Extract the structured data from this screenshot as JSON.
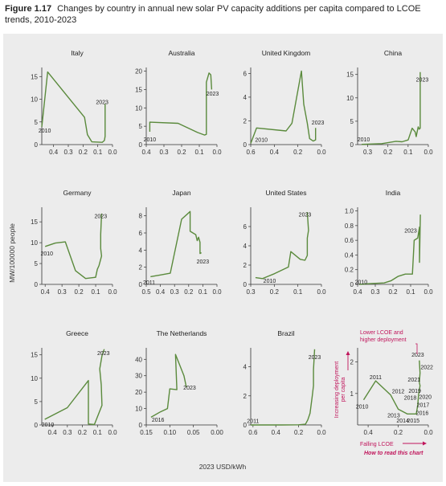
{
  "figure": {
    "label": "Figure 1.17",
    "title": "Changes by country in annual new solar PV capacity additions per capita compared to LCOE trends, 2010-2023"
  },
  "colors": {
    "line": "#5a8a3c",
    "axis": "#333333",
    "background": "#ececec",
    "annotation": "#c0155b"
  },
  "chart_data": {
    "type": "line",
    "xlabel": "2023 USD/kWh",
    "ylabel": "MW/100000 people",
    "x_axis_reversed": true,
    "panels": [
      {
        "name": "Italy",
        "xlim": [
          0.48,
          0.0
        ],
        "xticks": [
          0.4,
          0.3,
          0.2,
          0.1,
          0.0
        ],
        "xtick_labels": [
          "0.4",
          "0.3",
          "0.2",
          "0.1",
          "0.0"
        ],
        "ylim": [
          0,
          17
        ],
        "yticks": [
          0,
          5,
          10,
          15
        ],
        "ytick_labels": [
          "0",
          "5",
          "10",
          "15"
        ],
        "labels": [
          {
            "text": "2010",
            "x": 0.46,
            "y": 3.2
          },
          {
            "text": "2023",
            "x": 0.07,
            "y": 9.5
          }
        ],
        "points": [
          [
            0.48,
            3.9
          ],
          [
            0.44,
            16
          ],
          [
            0.19,
            6
          ],
          [
            0.17,
            2.2
          ],
          [
            0.14,
            0.6
          ],
          [
            0.07,
            0.5
          ],
          [
            0.055,
            0.9
          ],
          [
            0.05,
            1.8
          ],
          [
            0.05,
            5
          ],
          [
            0.05,
            9
          ]
        ]
      },
      {
        "name": "Australia",
        "xlim": [
          0.4,
          0.0
        ],
        "xticks": [
          0.4,
          0.3,
          0.2,
          0.1,
          0.0
        ],
        "xtick_labels": [
          "0.4",
          "0.3",
          "0.2",
          "0.1",
          "0.0"
        ],
        "ylim": [
          0,
          21
        ],
        "yticks": [
          0,
          5,
          10,
          15,
          20
        ],
        "ytick_labels": [
          "0",
          "5",
          "10",
          "15",
          "20"
        ],
        "labels": [
          {
            "text": "2010",
            "x": 0.38,
            "y": 1.5
          },
          {
            "text": "2023",
            "x": 0.025,
            "y": 14
          }
        ],
        "points": [
          [
            0.38,
            3.5
          ],
          [
            0.38,
            6.1
          ],
          [
            0.22,
            5.8
          ],
          [
            0.11,
            3.3
          ],
          [
            0.07,
            2.6
          ],
          [
            0.06,
            2.8
          ],
          [
            0.06,
            5
          ],
          [
            0.06,
            17
          ],
          [
            0.045,
            19.5
          ],
          [
            0.035,
            19
          ],
          [
            0.03,
            15
          ]
        ]
      },
      {
        "name": "United Kingdom",
        "xlim": [
          0.6,
          0.0
        ],
        "xticks": [
          0.6,
          0.4,
          0.2,
          0.0
        ],
        "xtick_labels": [
          "0.6",
          "0.4",
          "0.2",
          "0.0"
        ],
        "ylim": [
          0,
          6.5
        ],
        "yticks": [
          0,
          2,
          4,
          6
        ],
        "ytick_labels": [
          "0",
          "2",
          "4",
          "6"
        ],
        "labels": [
          {
            "text": "2010",
            "x": 0.51,
            "y": 0.45
          },
          {
            "text": "2023",
            "x": 0.03,
            "y": 1.9
          }
        ],
        "points": [
          [
            0.6,
            0.1
          ],
          [
            0.55,
            1.4
          ],
          [
            0.3,
            1.15
          ],
          [
            0.25,
            1.8
          ],
          [
            0.17,
            6.2
          ],
          [
            0.15,
            3.4
          ],
          [
            0.12,
            1.8
          ],
          [
            0.1,
            0.5
          ],
          [
            0.07,
            0.3
          ],
          [
            0.05,
            0.4
          ],
          [
            0.05,
            1.4
          ]
        ]
      },
      {
        "name": "China",
        "xlim": [
          0.35,
          0.0
        ],
        "xticks": [
          0.3,
          0.2,
          0.1,
          0.0
        ],
        "xtick_labels": [
          "0.3",
          "0.2",
          "0.1",
          "0.0"
        ],
        "ylim": [
          0,
          16.5
        ],
        "yticks": [
          0,
          5,
          10,
          15
        ],
        "ytick_labels": [
          "0",
          "5",
          "10",
          "15"
        ],
        "labels": [
          {
            "text": "2010",
            "x": 0.32,
            "y": 1.2
          },
          {
            "text": "2023",
            "x": 0.03,
            "y": 14
          }
        ],
        "points": [
          [
            0.33,
            0.05
          ],
          [
            0.23,
            0.2
          ],
          [
            0.16,
            0.7
          ],
          [
            0.13,
            0.6
          ],
          [
            0.1,
            1.0
          ],
          [
            0.08,
            3.5
          ],
          [
            0.065,
            2.7
          ],
          [
            0.06,
            1.7
          ],
          [
            0.05,
            3.8
          ],
          [
            0.045,
            3.3
          ],
          [
            0.04,
            3.5
          ],
          [
            0.04,
            7
          ],
          [
            0.04,
            15.5
          ]
        ]
      },
      {
        "name": "Germany",
        "xlim": [
          0.42,
          0.0
        ],
        "xticks": [
          0.4,
          0.3,
          0.2,
          0.1,
          0.0
        ],
        "xtick_labels": [
          "0.4",
          "0.3",
          "0.2",
          "0.1",
          "0.0"
        ],
        "ylim": [
          0,
          18.5
        ],
        "yticks": [
          0,
          5,
          10,
          15
        ],
        "ytick_labels": [
          "0",
          "5",
          "10",
          "15"
        ],
        "labels": [
          {
            "text": "2010",
            "x": 0.39,
            "y": 7.5
          },
          {
            "text": "2023",
            "x": 0.07,
            "y": 16.5
          }
        ],
        "points": [
          [
            0.4,
            9.1
          ],
          [
            0.34,
            9.9
          ],
          [
            0.28,
            10.2
          ],
          [
            0.22,
            3.3
          ],
          [
            0.16,
            1.4
          ],
          [
            0.1,
            1.7
          ],
          [
            0.09,
            3.6
          ],
          [
            0.08,
            4.5
          ],
          [
            0.065,
            6.8
          ],
          [
            0.07,
            8.6
          ],
          [
            0.07,
            12
          ],
          [
            0.065,
            17
          ]
        ]
      },
      {
        "name": "Japan",
        "xlim": [
          0.5,
          0.0
        ],
        "xticks": [
          0.5,
          0.4,
          0.3,
          0.2,
          0.1,
          0.0
        ],
        "xtick_labels": [
          "0.5",
          "0.4",
          "0.3",
          "0.2",
          "0.1",
          "0.0"
        ],
        "ylim": [
          0,
          9
        ],
        "yticks": [
          0,
          2,
          4,
          6,
          8
        ],
        "ytick_labels": [
          "0",
          "2",
          "4",
          "6",
          "8"
        ],
        "labels": [
          {
            "text": "2011",
            "x": 0.48,
            "y": 0.3
          },
          {
            "text": "2023",
            "x": 0.1,
            "y": 2.7
          }
        ],
        "points": [
          [
            0.47,
            0.9
          ],
          [
            0.4,
            1.1
          ],
          [
            0.33,
            1.3
          ],
          [
            0.25,
            7.6
          ],
          [
            0.19,
            8.5
          ],
          [
            0.19,
            6.2
          ],
          [
            0.15,
            5.8
          ],
          [
            0.14,
            5.1
          ],
          [
            0.13,
            5.5
          ],
          [
            0.12,
            4.9
          ],
          [
            0.12,
            3.6
          ],
          [
            0.11,
            3.7
          ]
        ]
      },
      {
        "name": "United States",
        "xlim": [
          0.3,
          0.0
        ],
        "xticks": [
          0.3,
          0.2,
          0.1,
          0.0
        ],
        "xtick_labels": [
          "0.3",
          "0.2",
          "0.1",
          "0.0"
        ],
        "ylim": [
          0,
          8
        ],
        "yticks": [
          0,
          2,
          4,
          6
        ],
        "ytick_labels": [
          "0",
          "2",
          "4",
          "6"
        ],
        "labels": [
          {
            "text": "2010",
            "x": 0.22,
            "y": 0.4
          },
          {
            "text": "2023",
            "x": 0.07,
            "y": 7.3
          }
        ],
        "points": [
          [
            0.28,
            0.7
          ],
          [
            0.25,
            0.6
          ],
          [
            0.23,
            0.8
          ],
          [
            0.2,
            1.1
          ],
          [
            0.14,
            1.8
          ],
          [
            0.13,
            3.4
          ],
          [
            0.09,
            2.6
          ],
          [
            0.07,
            2.5
          ],
          [
            0.06,
            3
          ],
          [
            0.06,
            4.8
          ],
          [
            0.055,
            5.6
          ],
          [
            0.06,
            7.5
          ]
        ]
      },
      {
        "name": "India",
        "xlim": [
          0.4,
          0.0
        ],
        "xticks": [
          0.4,
          0.3,
          0.2,
          0.1,
          0.0
        ],
        "xtick_labels": [
          "0.4",
          "0.3",
          "0.2",
          "0.1",
          "0.0"
        ],
        "ylim": [
          0,
          1.05
        ],
        "yticks": [
          0,
          0.2,
          0.4,
          0.6,
          0.8,
          1.0
        ],
        "ytick_labels": [
          "0",
          "0.2",
          "0.4",
          "0.6",
          "0.8",
          "1.0"
        ],
        "labels": [
          {
            "text": "2010",
            "x": 0.38,
            "y": 0.04
          },
          {
            "text": "2023",
            "x": 0.1,
            "y": 0.74
          }
        ],
        "points": [
          [
            0.39,
            0.0
          ],
          [
            0.33,
            0.01
          ],
          [
            0.25,
            0.02
          ],
          [
            0.21,
            0.05
          ],
          [
            0.17,
            0.11
          ],
          [
            0.13,
            0.14
          ],
          [
            0.09,
            0.14
          ],
          [
            0.08,
            0.6
          ],
          [
            0.06,
            0.63
          ],
          [
            0.05,
            0.78
          ],
          [
            0.05,
            0.3
          ],
          [
            0.045,
            0.95
          ]
        ]
      },
      {
        "name": "Greece",
        "xlim": [
          0.47,
          0.0
        ],
        "xticks": [
          0.4,
          0.3,
          0.2,
          0.1,
          0.0
        ],
        "xtick_labels": [
          "0.4",
          "0.3",
          "0.2",
          "0.1",
          "0.0"
        ],
        "ylim": [
          0,
          16.5
        ],
        "yticks": [
          0,
          5,
          10,
          15
        ],
        "ytick_labels": [
          "0",
          "5",
          "10",
          "15"
        ],
        "labels": [
          {
            "text": "2010",
            "x": 0.43,
            "y": 0.2
          },
          {
            "text": "2023",
            "x": 0.06,
            "y": 15.5
          }
        ],
        "points": [
          [
            0.45,
            1.2
          ],
          [
            0.3,
            3.7
          ],
          [
            0.16,
            9.5
          ],
          [
            0.16,
            0.2
          ],
          [
            0.12,
            0.1
          ],
          [
            0.07,
            4.2
          ],
          [
            0.075,
            8.6
          ],
          [
            0.085,
            12
          ],
          [
            0.07,
            14.8
          ],
          [
            0.055,
            16.2
          ]
        ]
      },
      {
        "name": "The Netherlands",
        "xlim": [
          0.15,
          0.0
        ],
        "xticks": [
          0.15,
          0.1,
          0.05,
          0.0
        ],
        "xtick_labels": [
          "0.15",
          "0.10",
          "0.05",
          "0.00"
        ],
        "ylim": [
          0,
          47
        ],
        "yticks": [
          0,
          10,
          20,
          30,
          40
        ],
        "ytick_labels": [
          "0",
          "10",
          "20",
          "30",
          "40"
        ],
        "labels": [
          {
            "text": "2016",
            "x": 0.125,
            "y": 3.5
          },
          {
            "text": "2023",
            "x": 0.058,
            "y": 23
          }
        ],
        "points": [
          [
            0.14,
            4.7
          ],
          [
            0.12,
            8
          ],
          [
            0.105,
            10
          ],
          [
            0.1,
            22
          ],
          [
            0.085,
            21.5
          ],
          [
            0.088,
            43
          ],
          [
            0.07,
            30
          ],
          [
            0.065,
            23
          ]
        ]
      },
      {
        "name": "Brazil",
        "xlim": [
          0.62,
          0.0
        ],
        "xticks": [
          0.6,
          0.4,
          0.2,
          0.0
        ],
        "xtick_labels": [
          "0.6",
          "0.4",
          "0.2",
          "0.0"
        ],
        "ylim": [
          0,
          5.3
        ],
        "yticks": [
          0,
          2,
          4
        ],
        "ytick_labels": [
          "0",
          "2",
          "4"
        ],
        "labels": [
          {
            "text": "2011",
            "x": 0.6,
            "y": 0.3
          },
          {
            "text": "2023",
            "x": 0.06,
            "y": 4.7
          }
        ],
        "points": [
          [
            0.62,
            0.0
          ],
          [
            0.5,
            0.0
          ],
          [
            0.35,
            0.0
          ],
          [
            0.2,
            0.01
          ],
          [
            0.14,
            0.05
          ],
          [
            0.12,
            0.35
          ],
          [
            0.1,
            0.8
          ],
          [
            0.08,
            2.0
          ],
          [
            0.07,
            2.7
          ],
          [
            0.07,
            3.8
          ],
          [
            0.06,
            5.2
          ]
        ]
      },
      {
        "name": "",
        "is_explainer": true,
        "xlim": [
          0.47,
          0.0
        ],
        "xticks": [
          0.4,
          0.2,
          0.0
        ],
        "xtick_labels": [
          "0.4",
          "0.2",
          "0.0"
        ],
        "ylim": [
          0,
          2.45
        ],
        "yticks": [
          1,
          2
        ],
        "ytick_labels": [
          "1",
          "2"
        ],
        "labels": [
          {
            "text": "2010",
            "x": 0.44,
            "y": 0.6
          },
          {
            "text": "2011",
            "x": 0.35,
            "y": 1.53
          },
          {
            "text": "2012",
            "x": 0.2,
            "y": 1.08
          },
          {
            "text": "2013",
            "x": 0.23,
            "y": 0.32
          },
          {
            "text": "2014",
            "x": 0.17,
            "y": 0.15
          },
          {
            "text": "2015",
            "x": 0.1,
            "y": 0.15
          },
          {
            "text": "2016",
            "x": 0.04,
            "y": 0.4
          },
          {
            "text": "2017",
            "x": 0.035,
            "y": 0.65
          },
          {
            "text": "2018",
            "x": 0.12,
            "y": 0.88
          },
          {
            "text": "2019",
            "x": 0.09,
            "y": 1.1
          },
          {
            "text": "2020",
            "x": 0.02,
            "y": 0.9
          },
          {
            "text": "2021",
            "x": 0.095,
            "y": 1.45
          },
          {
            "text": "2022",
            "x": 0.01,
            "y": 1.85
          },
          {
            "text": "2023",
            "x": 0.07,
            "y": 2.25
          }
        ],
        "points": [
          [
            0.43,
            0.8
          ],
          [
            0.35,
            1.4
          ],
          [
            0.25,
            0.95
          ],
          [
            0.2,
            0.5
          ],
          [
            0.14,
            0.35
          ],
          [
            0.08,
            0.35
          ],
          [
            0.075,
            0.5
          ],
          [
            0.07,
            0.65
          ],
          [
            0.065,
            0.95
          ],
          [
            0.06,
            1.1
          ],
          [
            0.055,
            1.25
          ],
          [
            0.06,
            1.35
          ],
          [
            0.055,
            1.65
          ],
          [
            0.06,
            2.05
          ]
        ],
        "annotations": {
          "top_text_line1": "Lower LCOE and",
          "top_text_line2": "higher deployment",
          "y_text_line1": "Increasing deployment",
          "y_text_line2": "per capita",
          "x_text": "Falling LCOE",
          "link_text": "How to read this chart"
        }
      }
    ]
  }
}
